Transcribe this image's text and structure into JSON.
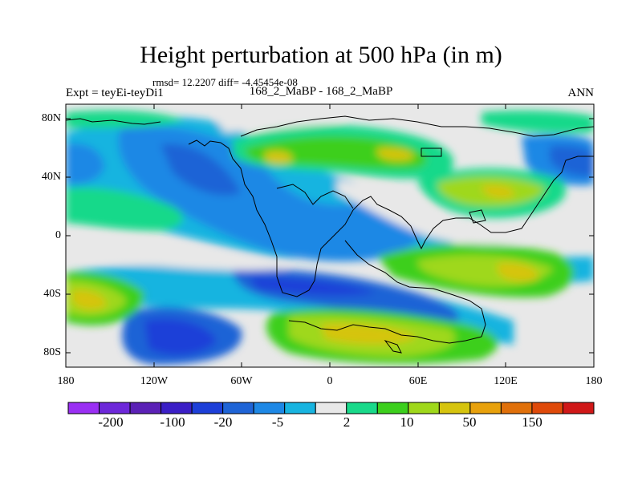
{
  "title": "Height perturbation at 500 hPa (in m)",
  "stats": "rmsd= 12.2207 diff= -4.45454e-08",
  "experiment": "Expt = teyEi-teyDi1",
  "period": "168_2_MaBP - 168_2_MaBP",
  "season": "ANN",
  "lat_ticks": [
    "80N",
    "40N",
    "0",
    "40S",
    "80S"
  ],
  "lon_ticks": [
    "180",
    "120W",
    "60W",
    "0",
    "60E",
    "120E",
    "180"
  ],
  "colorbar": {
    "colors": [
      "#9a2ff3",
      "#6d28d9",
      "#5b21b6",
      "#3b1fc6",
      "#1d3fd8",
      "#1f64d6",
      "#1e88e5",
      "#18b4e0",
      "#e8e8e8",
      "#19d98a",
      "#3ccf1d",
      "#9fd81b",
      "#d6c40e",
      "#e8a10c",
      "#e0700a",
      "#df4a0a",
      "#d01818"
    ],
    "labels": [
      "-200",
      "-100",
      "-20",
      "-5",
      "2",
      "10",
      "50",
      "150"
    ]
  }
}
